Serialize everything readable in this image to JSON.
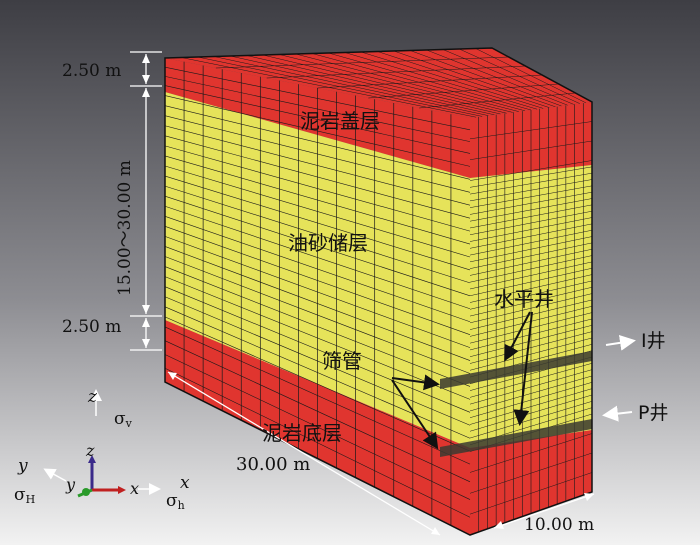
{
  "dimensions": {
    "top_cap": "2.50 m",
    "reservoir": "15.00～30.00 m",
    "bottom_cap": "2.50 m",
    "length": "30.00 m",
    "width": "10.00 m"
  },
  "layers": {
    "cap_rock": "泥岩盖层",
    "reservoir": "油砂储层",
    "base_rock": "泥岩底层"
  },
  "wells": {
    "horizontal_well": "水平井",
    "screen_pipe": "筛管",
    "injection_well": "I井",
    "production_well": "P井"
  },
  "stress": {
    "sigma_v": "σ",
    "sigma_v_sub": "v",
    "sigma_H": "σ",
    "sigma_H_sub": "H",
    "sigma_h": "σ",
    "sigma_h_sub": "h"
  },
  "axes": {
    "z_top": "z",
    "z": "z",
    "y": "y",
    "y_left": "y",
    "x": "x",
    "x_right": "x"
  },
  "colors": {
    "mudstone": "#e0352f",
    "oil_sand": "#e6e35a",
    "mesh_line": "#1a1a1a",
    "background_top": "#3e3e44",
    "background_bottom": "#f2f2f2"
  }
}
